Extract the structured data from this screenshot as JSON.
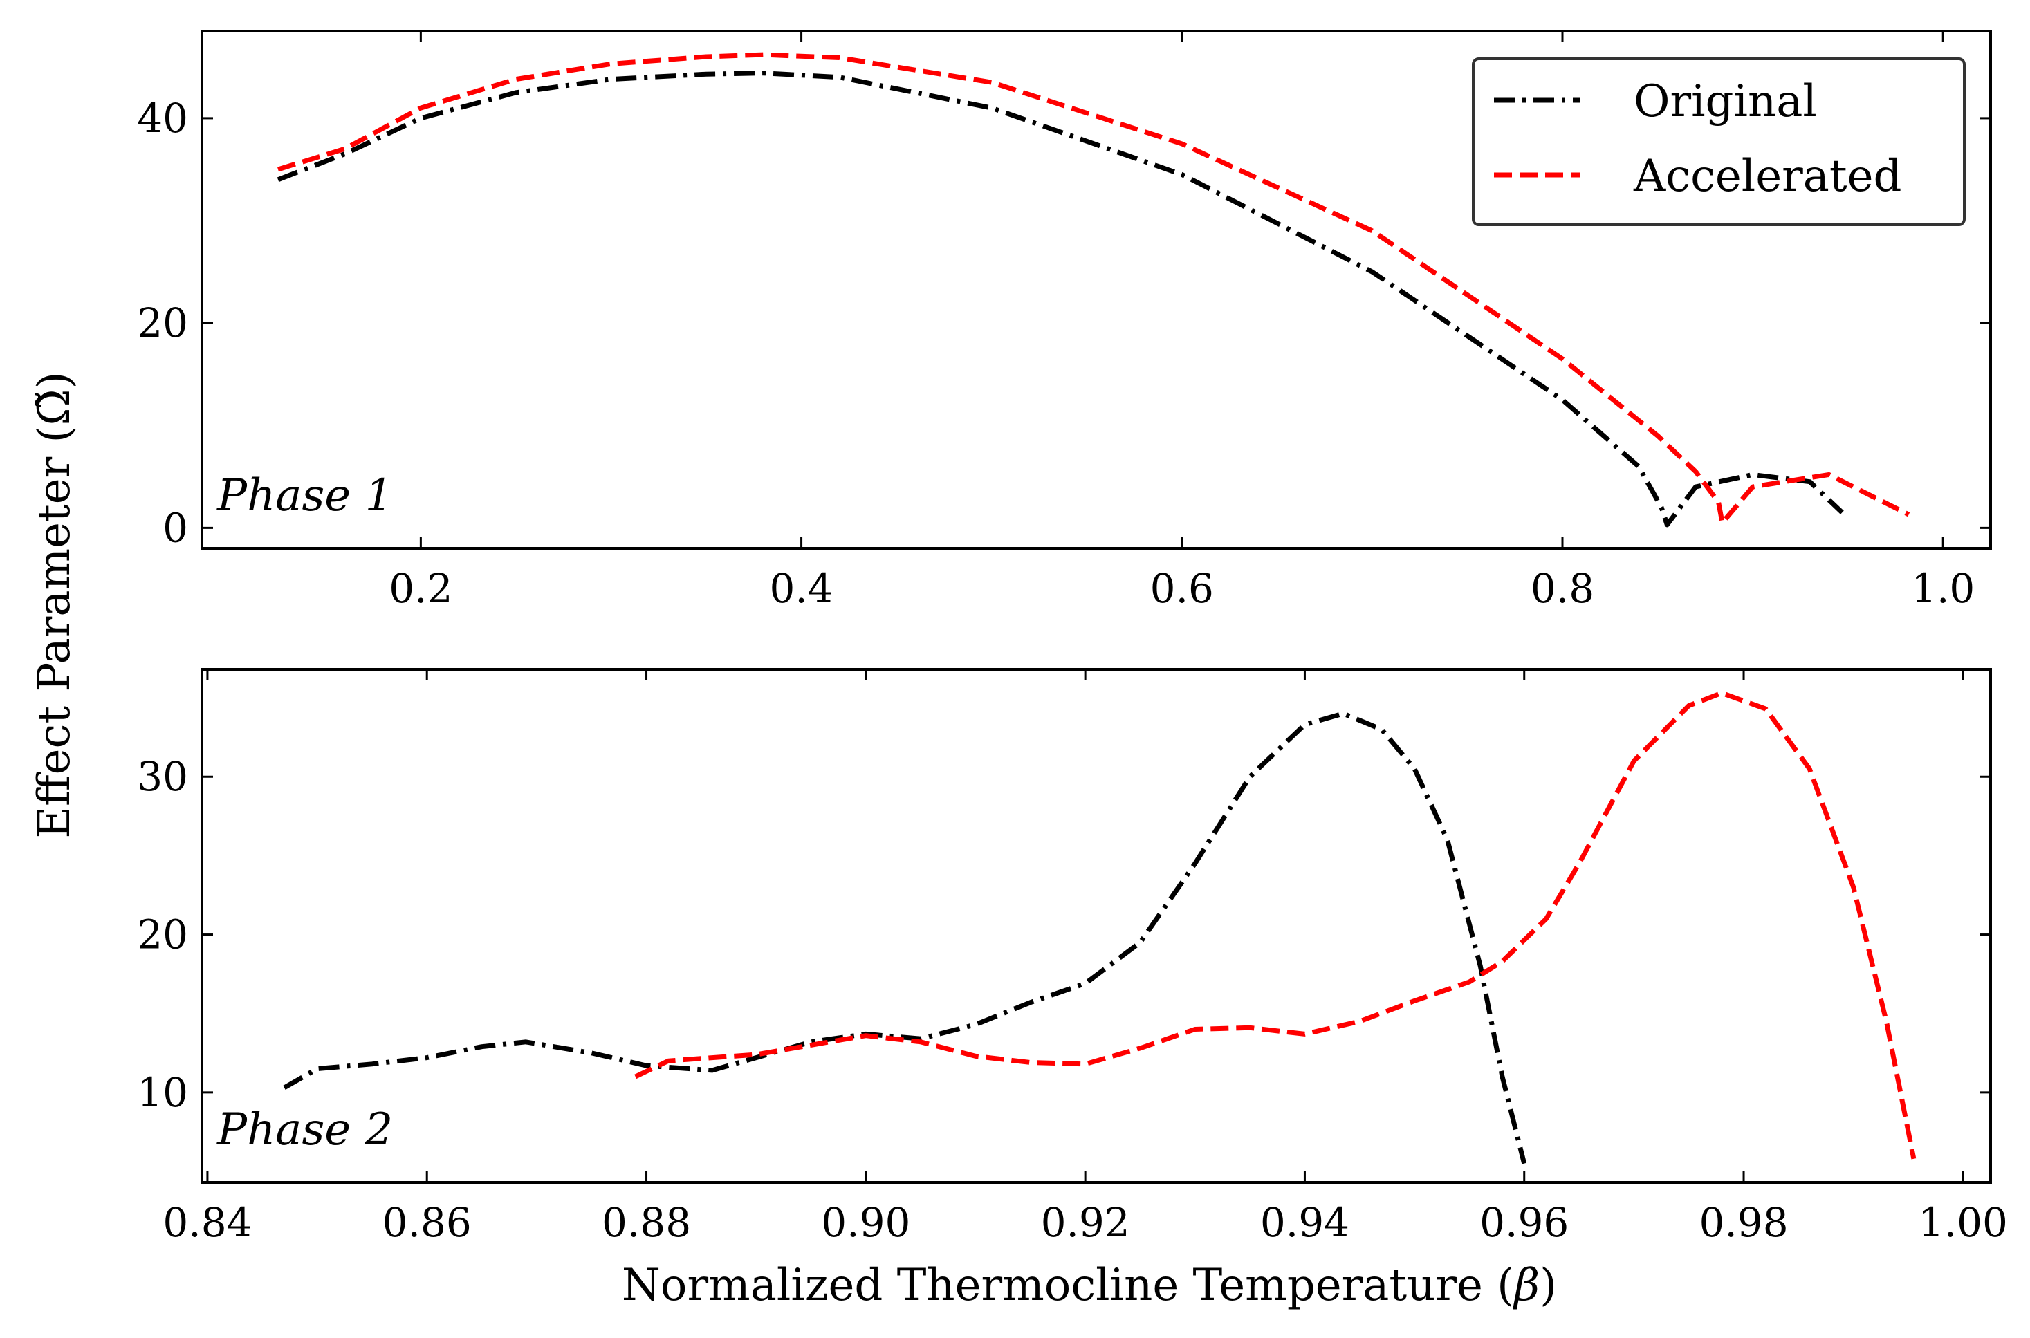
{
  "figure": {
    "ylabel": "Effect Parameter (Ω̃)",
    "xlabel": "Normalized Thermocline Temperature (",
    "xlabel_symbol": "β",
    "xlabel_close": ")"
  },
  "legend": {
    "items": [
      {
        "label": "Original",
        "color": "#000000",
        "dash": "dashdot"
      },
      {
        "label": "Accelerated",
        "color": "#ff0000",
        "dash": "dashed"
      }
    ]
  },
  "chart_data": [
    {
      "type": "line",
      "annotation": "Phase 1",
      "xlim": [
        0.085,
        1.025
      ],
      "ylim": [
        -2,
        48.5
      ],
      "xticks": [
        0.2,
        0.4,
        0.6,
        0.8,
        1.0
      ],
      "xtick_labels": [
        "0.2",
        "0.4",
        "0.6",
        "0.8",
        "1.0"
      ],
      "yticks": [
        0,
        20,
        40
      ],
      "ytick_labels": [
        "0",
        "20",
        "40"
      ],
      "series": [
        {
          "name": "Original",
          "color": "#000000",
          "dash": "dashdot",
          "x": [
            0.125,
            0.16,
            0.2,
            0.25,
            0.3,
            0.35,
            0.38,
            0.42,
            0.5,
            0.6,
            0.7,
            0.8,
            0.84,
            0.852,
            0.855,
            0.87,
            0.9,
            0.93,
            0.947
          ],
          "y": [
            34.0,
            36.5,
            40.0,
            42.5,
            43.8,
            44.3,
            44.4,
            44.0,
            41.0,
            34.5,
            25.0,
            12.5,
            6.0,
            2.0,
            0.3,
            4.0,
            5.2,
            4.5,
            1.5
          ]
        },
        {
          "name": "Accelerated",
          "color": "#ff0000",
          "dash": "dashed",
          "x": [
            0.125,
            0.16,
            0.2,
            0.25,
            0.3,
            0.35,
            0.38,
            0.42,
            0.5,
            0.6,
            0.7,
            0.8,
            0.85,
            0.87,
            0.882,
            0.884,
            0.9,
            0.94,
            0.982
          ],
          "y": [
            35.0,
            37.0,
            41.0,
            43.8,
            45.3,
            46.0,
            46.2,
            45.9,
            43.5,
            37.5,
            29.0,
            16.5,
            9.0,
            5.5,
            2.5,
            0.5,
            4.0,
            5.2,
            1.3
          ]
        }
      ]
    },
    {
      "type": "line",
      "annotation": "Phase 2",
      "xlim": [
        0.8395,
        1.0025
      ],
      "ylim": [
        4.3,
        36.8
      ],
      "xticks": [
        0.84,
        0.86,
        0.88,
        0.9,
        0.92,
        0.94,
        0.96,
        0.98,
        1.0
      ],
      "xtick_labels": [
        "0.84",
        "0.86",
        "0.88",
        "0.90",
        "0.92",
        "0.94",
        "0.96",
        "0.98",
        "1.00"
      ],
      "yticks": [
        10,
        20,
        30
      ],
      "ytick_labels": [
        "10",
        "20",
        "30"
      ],
      "series": [
        {
          "name": "Original",
          "color": "#000000",
          "dash": "dashdot",
          "x": [
            0.847,
            0.85,
            0.855,
            0.86,
            0.865,
            0.869,
            0.875,
            0.88,
            0.886,
            0.89,
            0.895,
            0.9,
            0.905,
            0.91,
            0.915,
            0.92,
            0.925,
            0.93,
            0.935,
            0.94,
            0.9435,
            0.947,
            0.95,
            0.953,
            0.956,
            0.958,
            0.96
          ],
          "y": [
            10.3,
            11.5,
            11.8,
            12.2,
            12.9,
            13.2,
            12.5,
            11.7,
            11.4,
            12.2,
            13.2,
            13.7,
            13.4,
            14.3,
            15.7,
            16.9,
            19.5,
            24.5,
            30.0,
            33.3,
            34.0,
            33.0,
            30.5,
            26.0,
            18.0,
            11.0,
            5.5
          ]
        },
        {
          "name": "Accelerated",
          "color": "#ff0000",
          "dash": "dashed",
          "x": [
            0.879,
            0.882,
            0.886,
            0.89,
            0.895,
            0.9,
            0.905,
            0.91,
            0.915,
            0.92,
            0.925,
            0.93,
            0.935,
            0.94,
            0.945,
            0.95,
            0.955,
            0.958,
            0.962,
            0.965,
            0.97,
            0.975,
            0.978,
            0.982,
            0.986,
            0.99,
            0.993,
            0.9955
          ],
          "y": [
            11.0,
            12.0,
            12.2,
            12.4,
            13.0,
            13.6,
            13.2,
            12.3,
            11.9,
            11.8,
            12.8,
            14.0,
            14.1,
            13.7,
            14.5,
            15.8,
            17.0,
            18.3,
            21.0,
            24.5,
            31.0,
            34.5,
            35.3,
            34.3,
            30.5,
            23.0,
            14.5,
            5.8
          ]
        }
      ]
    }
  ]
}
